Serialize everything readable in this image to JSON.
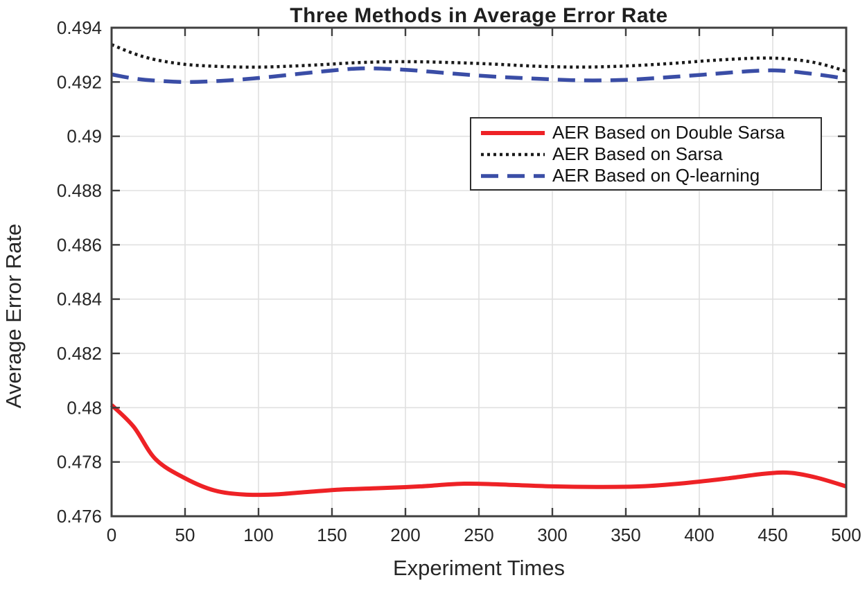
{
  "chart_data": {
    "type": "line",
    "title": "Three Methods in Average Error Rate",
    "xlabel": "Experiment Times",
    "ylabel": "Average Error Rate",
    "xlim": [
      0,
      500
    ],
    "ylim": [
      0.476,
      0.494
    ],
    "x_ticks": [
      0,
      50,
      100,
      150,
      200,
      250,
      300,
      350,
      400,
      450,
      500
    ],
    "x_tick_labels": [
      "0",
      "50",
      "100",
      "150",
      "200",
      "250",
      "300",
      "350",
      "400",
      "450",
      "500"
    ],
    "y_ticks": [
      0.476,
      0.478,
      0.48,
      0.482,
      0.484,
      0.486,
      0.488,
      0.49,
      0.492,
      0.494
    ],
    "y_tick_labels": [
      "0.476",
      "0.478",
      "0.48",
      "0.482",
      "0.484",
      "0.486",
      "0.488",
      "0.49",
      "0.492",
      "0.494"
    ],
    "grid": true,
    "legend_position": "upper-right-inside",
    "colors": {
      "axis": "#3f3f3f",
      "grid": "#e0e0e0",
      "tick_text": "#262626",
      "legend_border": "#2f2f2f",
      "background": "#ffffff"
    },
    "series": [
      {
        "name": "AER Based on Double Sarsa",
        "color": "#ee2226",
        "style": "solid",
        "x": [
          0,
          15,
          30,
          50,
          70,
          90,
          110,
          130,
          155,
          180,
          210,
          240,
          270,
          300,
          330,
          360,
          390,
          420,
          445,
          462,
          480,
          500
        ],
        "y": [
          0.4801,
          0.4793,
          0.4781,
          0.4774,
          0.47695,
          0.4768,
          0.4768,
          0.47688,
          0.47698,
          0.47703,
          0.4771,
          0.4772,
          0.47716,
          0.4771,
          0.47708,
          0.4771,
          0.47722,
          0.4774,
          0.47757,
          0.4776,
          0.47742,
          0.4771
        ]
      },
      {
        "name": "AER Based on Sarsa",
        "color": "#1a1a1a",
        "style": "dotted",
        "x": [
          0,
          15,
          30,
          50,
          70,
          90,
          110,
          140,
          170,
          200,
          230,
          260,
          290,
          320,
          350,
          380,
          410,
          440,
          460,
          480,
          500
        ],
        "y": [
          0.49338,
          0.49305,
          0.49282,
          0.49265,
          0.49258,
          0.49255,
          0.49256,
          0.49263,
          0.49272,
          0.49275,
          0.49272,
          0.49266,
          0.49258,
          0.49255,
          0.49259,
          0.49268,
          0.4928,
          0.49288,
          0.49285,
          0.4927,
          0.4924
        ]
      },
      {
        "name": "AER Based on Q-learning",
        "color": "#3a4da6",
        "style": "dashed",
        "x": [
          0,
          15,
          30,
          50,
          70,
          90,
          110,
          140,
          170,
          200,
          230,
          260,
          290,
          320,
          350,
          380,
          410,
          435,
          455,
          480,
          500
        ],
        "y": [
          0.49228,
          0.49213,
          0.49205,
          0.492,
          0.49203,
          0.4921,
          0.4922,
          0.49237,
          0.4925,
          0.49245,
          0.49232,
          0.4922,
          0.49212,
          0.49206,
          0.49208,
          0.49218,
          0.4923,
          0.4924,
          0.49242,
          0.49228,
          0.49212
        ]
      }
    ]
  }
}
